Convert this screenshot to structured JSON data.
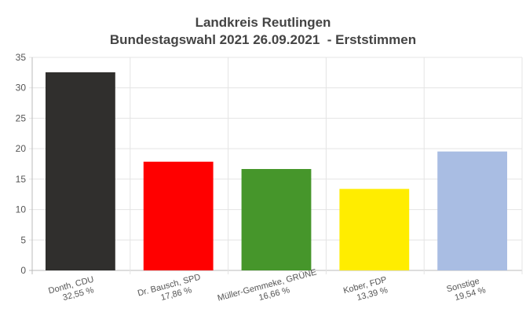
{
  "chart_data": {
    "type": "bar",
    "title": "Landkreis Reutlingen",
    "subtitle": "Bundestagswahl 2021 26.09.2021  - Erststimmen",
    "categories": [
      "Donth, CDU",
      "Dr. Bausch, SPD",
      "Müller-Gemmeke, GRÜNE",
      "Kober, FDP",
      "Sonstige"
    ],
    "value_labels": [
      "32,55 %",
      "17,86 %",
      "16,66 %",
      "13,39 %",
      "19,54 %"
    ],
    "values": [
      32.55,
      17.86,
      16.66,
      13.39,
      19.54
    ],
    "colors": [
      "#302f2d",
      "#ff0000",
      "#46962b",
      "#ffed00",
      "#a9bde3"
    ],
    "xlabel": "",
    "ylabel": "",
    "ylim": [
      0,
      35
    ],
    "yticks": [
      "0",
      "5",
      "10",
      "15",
      "20",
      "25",
      "30",
      "35"
    ],
    "grid": true
  }
}
